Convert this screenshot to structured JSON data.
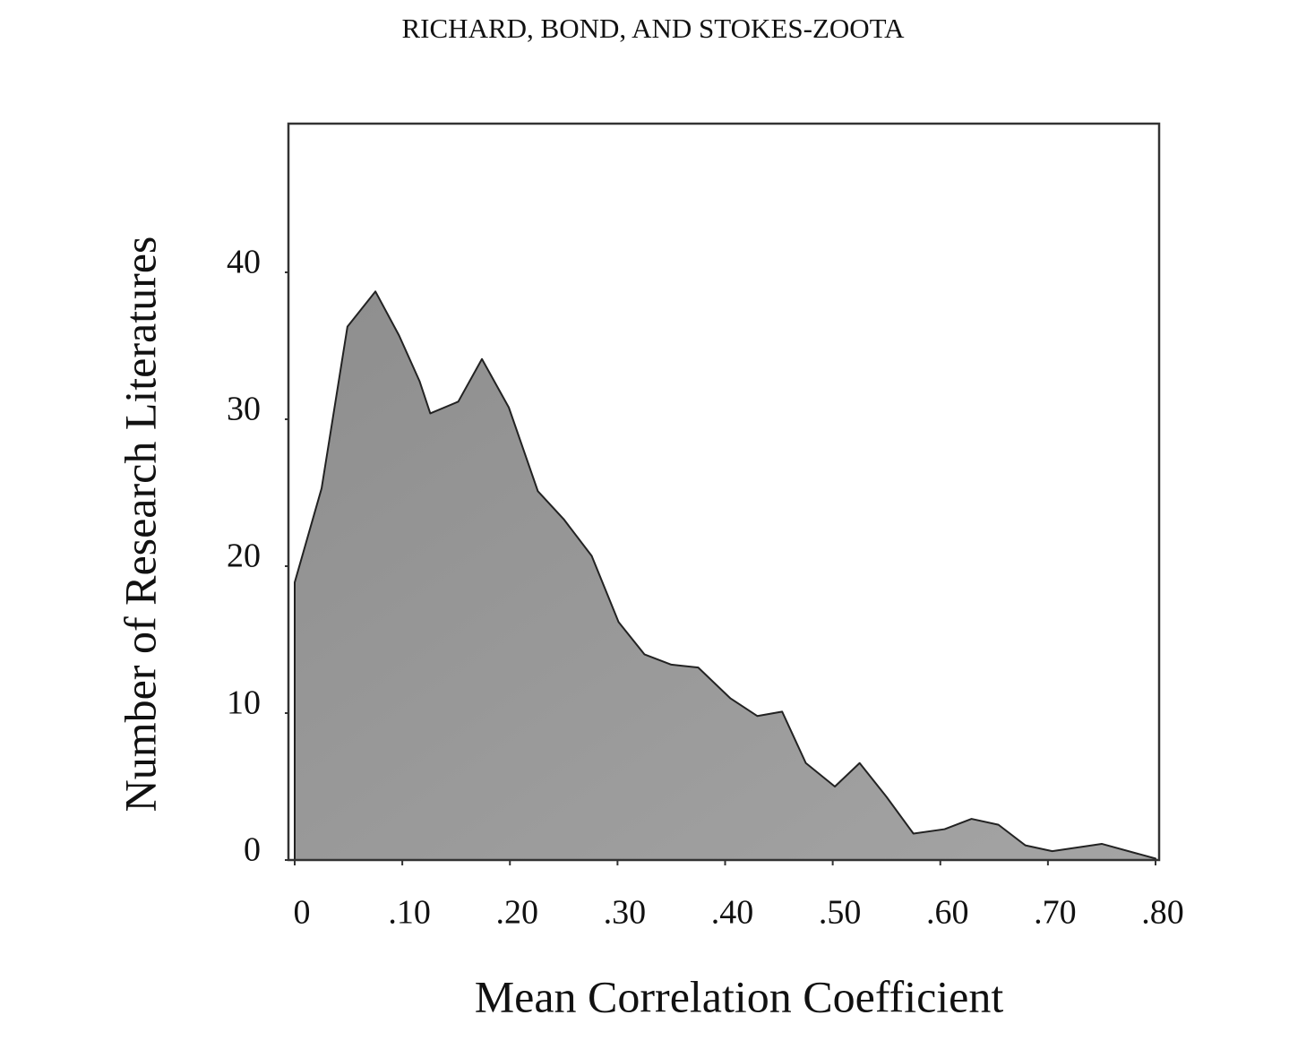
{
  "header": "RICHARD, BOND, AND STOKES-ZOOTA",
  "chart_data": {
    "type": "area",
    "xlabel": "Mean Correlation Coefficient",
    "ylabel": "Number of Research Literatures",
    "x": [
      0,
      0.025,
      0.049,
      0.075,
      0.097,
      0.116,
      0.126,
      0.152,
      0.174,
      0.199,
      0.226,
      0.25,
      0.276,
      0.301,
      0.325,
      0.35,
      0.375,
      0.405,
      0.43,
      0.453,
      0.475,
      0.502,
      0.525,
      0.55,
      0.575,
      0.604,
      0.629,
      0.654,
      0.679,
      0.704,
      0.75,
      0.8
    ],
    "values": [
      18.9,
      25.3,
      36.3,
      38.7,
      35.7,
      32.6,
      30.4,
      31.2,
      34.1,
      30.8,
      25.1,
      23.2,
      20.7,
      16.2,
      14.0,
      13.3,
      13.1,
      11.0,
      9.8,
      10.1,
      6.6,
      5.0,
      6.6,
      4.3,
      1.8,
      2.1,
      2.8,
      2.4,
      1.0,
      0.6,
      1.1,
      0.1
    ],
    "color": "#9a9a9a",
    "xlim": [
      0,
      0.8
    ],
    "xticks": [
      0,
      {
        "value": 0.1,
        "label": ".10"
      },
      {
        "value": 0.2,
        "label": ".20"
      },
      {
        "value": 0.3,
        "label": ".30"
      },
      {
        "value": 0.4,
        "label": ".40"
      },
      {
        "value": 0.5,
        "label": ".50"
      },
      {
        "value": 0.6,
        "label": ".60"
      },
      {
        "value": 0.7,
        "label": ".70"
      },
      {
        "value": 0.8,
        "label": ".80"
      }
    ],
    "ylim": [
      0,
      50
    ],
    "yticks": [
      0,
      10,
      20,
      30,
      40
    ],
    "grid": false
  }
}
